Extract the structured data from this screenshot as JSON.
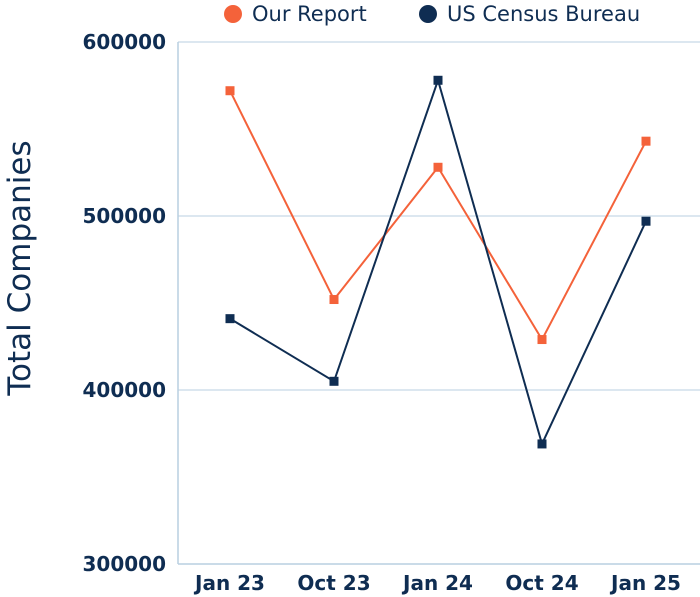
{
  "chart_data": {
    "type": "line",
    "title": "",
    "xlabel": "",
    "ylabel": "Total Companies",
    "categories": [
      "Jan 23",
      "Oct 23",
      "Jan 24",
      "Oct 24",
      "Jan 25"
    ],
    "series": [
      {
        "name": "Our Report",
        "color": "#f4623a",
        "marker": "square",
        "values": [
          572000,
          452000,
          528000,
          429000,
          543000
        ]
      },
      {
        "name": "US Census Bureau",
        "color": "#0f2d52",
        "marker": "square",
        "values": [
          441000,
          405000,
          578000,
          369000,
          497000
        ]
      }
    ],
    "ylim": [
      300000,
      600000
    ],
    "yticks": [
      "300000",
      "400000",
      "500000",
      "600000"
    ],
    "grid": "horizontal",
    "legend_position": "top"
  }
}
